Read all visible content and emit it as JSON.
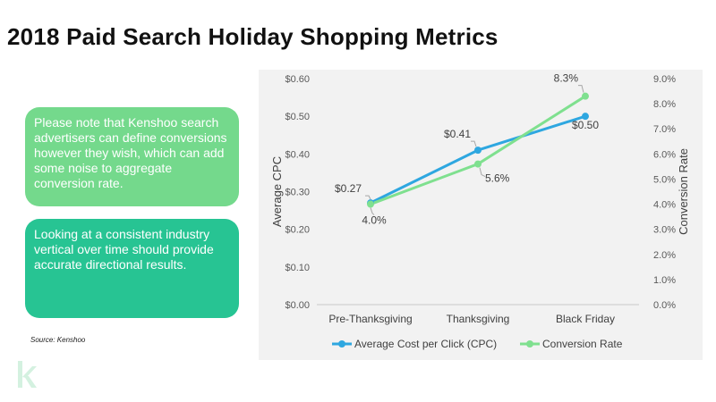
{
  "title": "2018 Paid Search Holiday Shopping Metrics",
  "notes": [
    "Please note that Kenshoo search advertisers can define conversions however they wish, which can add some noise to aggregate conversion rate.",
    "Looking at a consistent industry vertical over time should provide accurate directional results."
  ],
  "source": "Source: Kenshoo",
  "logo_icon": "kenshoo-logo-icon",
  "colors": {
    "cpc": "#2ea7e0",
    "conversion": "#7fe08f",
    "note1": "#74d98c",
    "note2": "#27c493"
  },
  "chart_data": {
    "type": "line",
    "categories": [
      "Pre-Thanksgiving",
      "Thanksgiving",
      "Black Friday"
    ],
    "ylabel": "Average CPC",
    "y2label": "Conversion Rate",
    "ylim": [
      0,
      0.6
    ],
    "y2lim": [
      0,
      9
    ],
    "yticks": [
      "$0.00",
      "$0.10",
      "$0.20",
      "$0.30",
      "$0.40",
      "$0.50",
      "$0.60"
    ],
    "y2ticks": [
      "0.0%",
      "1.0%",
      "2.0%",
      "3.0%",
      "4.0%",
      "5.0%",
      "6.0%",
      "7.0%",
      "8.0%",
      "9.0%"
    ],
    "legend_position": "bottom",
    "grid": false,
    "series": [
      {
        "name": "Average Cost per Click (CPC)",
        "axis": "left",
        "values": [
          0.27,
          0.41,
          0.5
        ],
        "labels": [
          "$0.27",
          "$0.41",
          "$0.50"
        ]
      },
      {
        "name": "Conversion Rate",
        "axis": "right",
        "values": [
          4.0,
          5.6,
          8.3
        ],
        "labels": [
          "4.0%",
          "5.6%",
          "8.3%"
        ]
      }
    ]
  }
}
